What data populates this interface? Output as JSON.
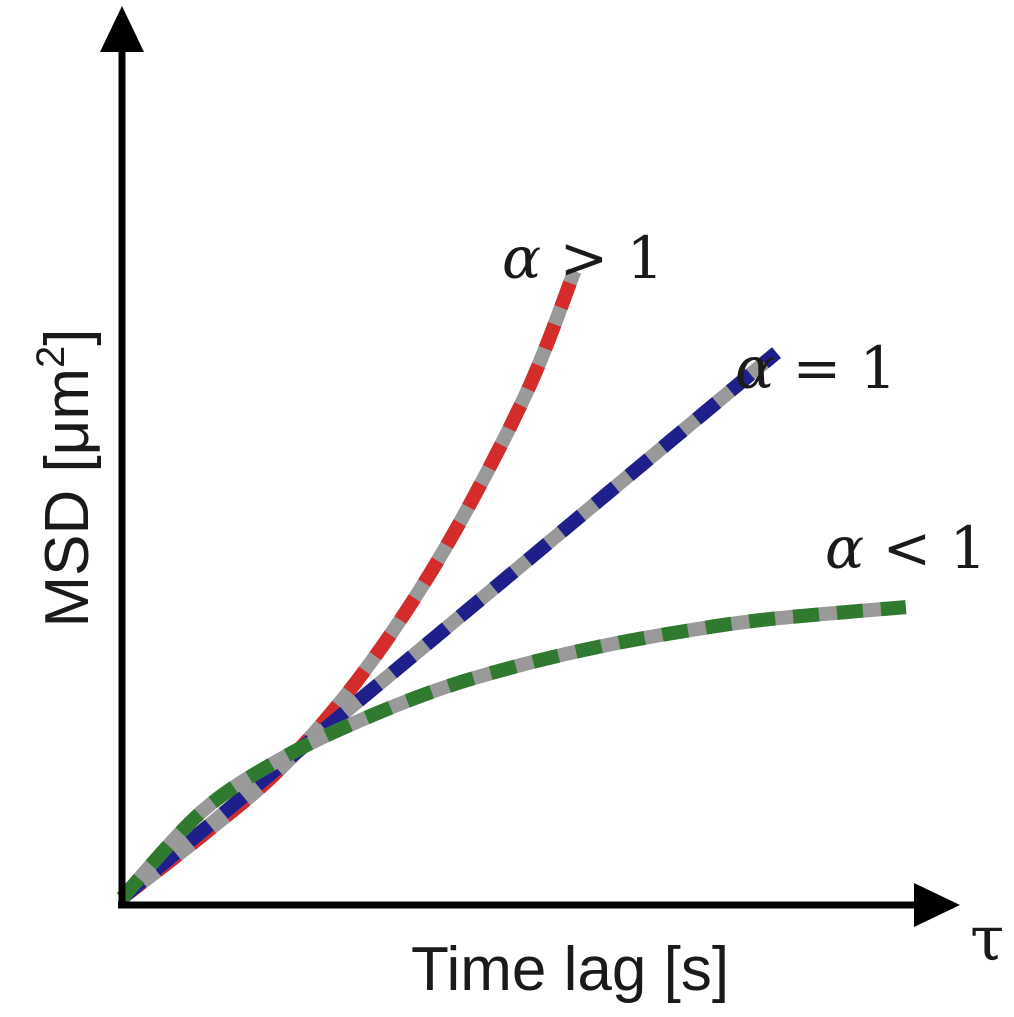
{
  "chart_data": {
    "type": "line",
    "xlabel": "Time lag [s]",
    "ylabel": "MSD [μm²]",
    "ylabel_parts": {
      "main": "MSD [μm",
      "sup": "2",
      "close": "]"
    },
    "x_axis_symbol": "τ",
    "xlim": [
      0,
      1
    ],
    "ylim": [
      0,
      1
    ],
    "grid": false,
    "ticks": false,
    "dash_color": "#999999",
    "series": [
      {
        "name": "α > 1",
        "label": {
          "alpha": "α",
          "rest": " > 1"
        },
        "color": "#d42b2b",
        "x": [
          0,
          0.1,
          0.2,
          0.3,
          0.4,
          0.5,
          0.56
        ],
        "y": [
          0,
          0.078,
          0.164,
          0.281,
          0.433,
          0.624,
          0.776
        ]
      },
      {
        "name": "α = 1",
        "label": {
          "alpha": "α",
          "rest": " = 1"
        },
        "color": "#1f1f8c",
        "x": [
          0,
          0.2,
          0.4,
          0.6,
          0.81
        ],
        "y": [
          0,
          0.167,
          0.333,
          0.5,
          0.675
        ]
      },
      {
        "name": "α < 1",
        "label": {
          "alpha": "α",
          "rest": " < 1"
        },
        "color": "#2f7a2f",
        "x": [
          0,
          0.1,
          0.2,
          0.3,
          0.4,
          0.5,
          0.6,
          0.7,
          0.8,
          0.97
        ],
        "y": [
          0,
          0.108,
          0.174,
          0.222,
          0.261,
          0.29,
          0.313,
          0.331,
          0.345,
          0.36
        ]
      }
    ]
  }
}
